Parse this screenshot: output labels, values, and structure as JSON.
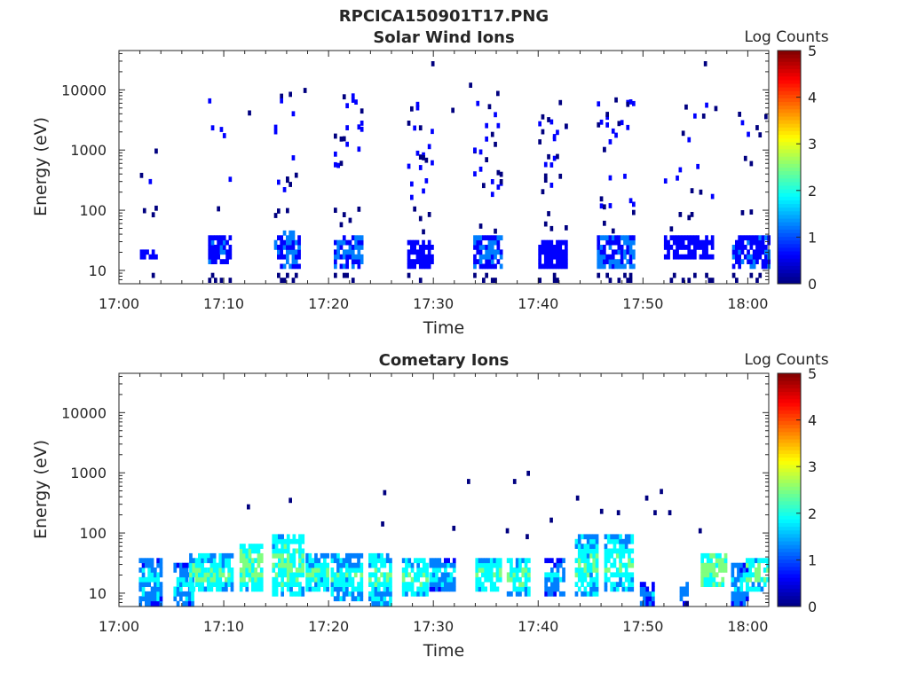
{
  "figure_title": "RPCICA150901T17.PNG",
  "colors": {
    "colormap": [
      "#00007f",
      "#0000ff",
      "#007fff",
      "#00ffff",
      "#7fff7f",
      "#ffff00",
      "#ff7f00",
      "#ff0000",
      "#7f0000"
    ]
  },
  "chart_data": [
    {
      "type": "heatmap",
      "title": "Solar Wind Ions",
      "xlabel": "Time",
      "ylabel": "Energy (eV)",
      "x_ticks": [
        "17:00",
        "17:10",
        "17:20",
        "17:30",
        "17:40",
        "17:50",
        "18:00"
      ],
      "x_range_minutes": [
        0,
        62
      ],
      "y_scale": "log",
      "y_ticks": [
        10,
        100,
        1000,
        10000
      ],
      "y_tick_labels": [
        "10",
        "100",
        "1000",
        "10000"
      ],
      "y_range": [
        6,
        45000
      ],
      "colorbar": {
        "label": "Log Counts",
        "range": [
          0,
          5
        ],
        "ticks": [
          "0",
          "1",
          "2",
          "3",
          "4",
          "5"
        ]
      },
      "time_grid": {
        "start_min": 2.0,
        "step_min": 0.28
      },
      "clusters": [
        {
          "t0": 2.0,
          "t1": 3.6,
          "base_lo": 13,
          "base_hi": 22,
          "base_val": 0.5,
          "dense": 3,
          "sparse": 7,
          "s_lo": 200,
          "s_hi": 5000
        },
        {
          "t0": 8.5,
          "t1": 10.7,
          "base_lo": 12,
          "base_hi": 38,
          "base_val": 0.7,
          "dense": 4,
          "sparse": 3,
          "s_lo": 150,
          "s_hi": 9000
        },
        {
          "t0": 14.8,
          "t1": 17.3,
          "base_lo": 10,
          "base_hi": 40,
          "base_val": 0.8,
          "dense": 4,
          "sparse": 22,
          "s_lo": 200,
          "s_hi": 9000
        },
        {
          "t0": 20.5,
          "t1": 23.3,
          "base_lo": 9,
          "base_hi": 38,
          "base_val": 0.8,
          "dense": 4,
          "sparse": 28,
          "s_lo": 300,
          "s_hi": 9000
        },
        {
          "t0": 27.5,
          "t1": 30.0,
          "base_lo": 10,
          "base_hi": 30,
          "base_val": 0.6,
          "dense": 3,
          "sparse": 24,
          "s_lo": 150,
          "s_hi": 6000
        },
        {
          "t0": 33.8,
          "t1": 36.6,
          "base_lo": 9,
          "base_hi": 32,
          "base_val": 0.8,
          "dense": 4,
          "sparse": 30,
          "s_lo": 150,
          "s_hi": 6000
        },
        {
          "t0": 40.0,
          "t1": 42.8,
          "base_lo": 10,
          "base_hi": 30,
          "base_val": 0.5,
          "dense": 2,
          "sparse": 26,
          "s_lo": 150,
          "s_hi": 6000
        },
        {
          "t0": 45.6,
          "t1": 49.2,
          "base_lo": 9,
          "base_hi": 32,
          "base_val": 0.8,
          "dense": 4,
          "sparse": 34,
          "s_lo": 100,
          "s_hi": 9000
        },
        {
          "t0": 52.0,
          "t1": 56.5,
          "base_lo": 14,
          "base_hi": 35,
          "base_val": 0.4,
          "dense": 1,
          "sparse": 14,
          "s_lo": 150,
          "s_hi": 6000
        },
        {
          "t0": 58.5,
          "t1": 61.9,
          "base_lo": 10,
          "base_hi": 38,
          "base_val": 0.7,
          "dense": 4,
          "sparse": 18,
          "s_lo": 150,
          "s_hi": 9000
        }
      ],
      "outliers": [
        [
          29.8,
          25000
        ],
        [
          55.8,
          25000
        ],
        [
          36.0,
          8000
        ],
        [
          33.4,
          11000
        ],
        [
          17.6,
          9000
        ],
        [
          56.8,
          4500
        ],
        [
          12.3,
          3800
        ],
        [
          31.7,
          4200
        ]
      ]
    },
    {
      "type": "heatmap",
      "title": "Cometary Ions",
      "xlabel": "Time",
      "ylabel": "Energy (eV)",
      "x_ticks": [
        "17:00",
        "17:10",
        "17:20",
        "17:30",
        "17:40",
        "17:50",
        "18:00"
      ],
      "x_range_minutes": [
        0,
        62
      ],
      "y_scale": "log",
      "y_ticks": [
        10,
        100,
        1000,
        10000
      ],
      "y_tick_labels": [
        "10",
        "100",
        "1000",
        "10000"
      ],
      "y_range": [
        6,
        45000
      ],
      "colorbar": {
        "label": "Log Counts",
        "range": [
          0,
          5
        ],
        "ticks": [
          "0",
          "1",
          "2",
          "3",
          "4",
          "5"
        ]
      },
      "time_grid": {
        "start_min": 2.0,
        "step_min": 0.28
      },
      "clusters": [
        {
          "t0": 1.9,
          "t1": 3.9,
          "lo": 6,
          "hi": 35,
          "val": 1.0
        },
        {
          "t0": 5.2,
          "t1": 6.9,
          "lo": 6,
          "hi": 30,
          "val": 1.1
        },
        {
          "t0": 6.7,
          "t1": 8.5,
          "lo": 10,
          "hi": 40,
          "val": 1.6
        },
        {
          "t0": 8.4,
          "t1": 10.7,
          "lo": 9,
          "hi": 40,
          "val": 1.4
        },
        {
          "t0": 11.5,
          "t1": 13.6,
          "lo": 10,
          "hi": 65,
          "val": 1.7
        },
        {
          "t0": 14.6,
          "t1": 17.6,
          "lo": 8,
          "hi": 90,
          "val": 1.6
        },
        {
          "t0": 17.8,
          "t1": 20.0,
          "lo": 9,
          "hi": 40,
          "val": 1.4
        },
        {
          "t0": 20.2,
          "t1": 23.2,
          "lo": 7,
          "hi": 40,
          "val": 1.3
        },
        {
          "t0": 23.8,
          "t1": 26.0,
          "lo": 6,
          "hi": 40,
          "val": 1.4
        },
        {
          "t0": 27.0,
          "t1": 29.5,
          "lo": 8,
          "hi": 36,
          "val": 1.5
        },
        {
          "t0": 29.6,
          "t1": 31.9,
          "lo": 9,
          "hi": 36,
          "val": 1.0
        },
        {
          "t0": 34.0,
          "t1": 36.3,
          "lo": 9,
          "hi": 36,
          "val": 1.5
        },
        {
          "t0": 37.0,
          "t1": 39.2,
          "lo": 8,
          "hi": 36,
          "val": 1.5
        },
        {
          "t0": 40.6,
          "t1": 42.3,
          "lo": 8,
          "hi": 36,
          "val": 0.9
        },
        {
          "t0": 43.5,
          "t1": 45.7,
          "lo": 8,
          "hi": 90,
          "val": 1.4
        },
        {
          "t0": 46.3,
          "t1": 48.9,
          "lo": 10,
          "hi": 80,
          "val": 1.5
        },
        {
          "t0": 49.7,
          "t1": 51.0,
          "lo": 6,
          "hi": 14,
          "val": 0.6
        },
        {
          "t0": 53.5,
          "t1": 54.3,
          "lo": 6,
          "hi": 14,
          "val": 0.6
        },
        {
          "t0": 55.5,
          "t1": 58.0,
          "lo": 12,
          "hi": 40,
          "val": 1.9
        },
        {
          "t0": 58.4,
          "t1": 60.0,
          "lo": 6,
          "hi": 30,
          "val": 1.0
        },
        {
          "t0": 59.8,
          "t1": 61.8,
          "lo": 10,
          "hi": 38,
          "val": 1.6
        }
      ],
      "outliers": [
        [
          12.2,
          250
        ],
        [
          16.2,
          320
        ],
        [
          25.2,
          430
        ],
        [
          33.2,
          660
        ],
        [
          37.6,
          660
        ],
        [
          38.9,
          900
        ],
        [
          43.6,
          350
        ],
        [
          45.9,
          210
        ],
        [
          47.5,
          200
        ],
        [
          50.2,
          350
        ],
        [
          51.0,
          200
        ],
        [
          51.6,
          450
        ],
        [
          52.4,
          200
        ],
        [
          41.1,
          150
        ],
        [
          31.8,
          110
        ],
        [
          36.9,
          100
        ],
        [
          38.8,
          80
        ],
        [
          55.3,
          100
        ],
        [
          25.0,
          130
        ]
      ]
    }
  ]
}
